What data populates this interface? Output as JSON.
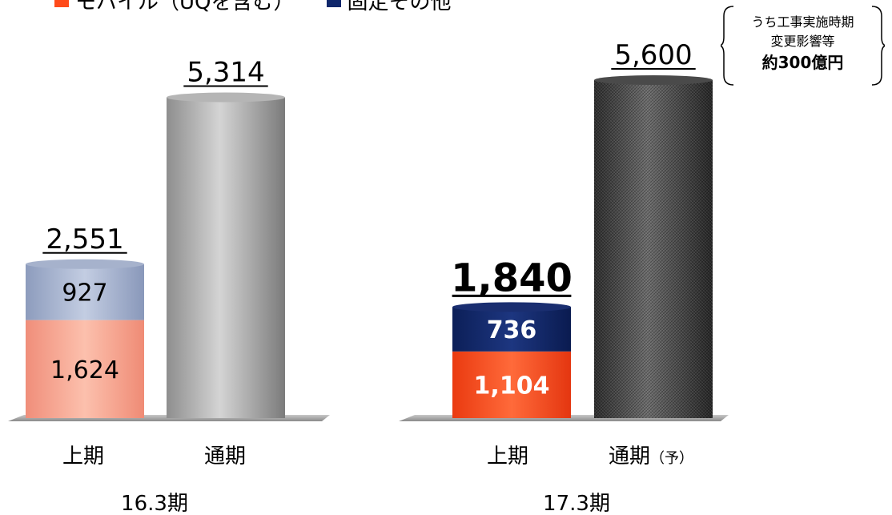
{
  "legend": [
    {
      "label": "モバイル（UQを含む）",
      "color": "#ff4b1a"
    },
    {
      "label": "固定その他",
      "color": "#10276b"
    }
  ],
  "note": {
    "line1": "うち工事実施時期",
    "line2": "変更影響等",
    "line3": "約300億円"
  },
  "chart_data": {
    "type": "bar",
    "groups": [
      {
        "period": "16.3期",
        "bars": [
          {
            "label": "上期",
            "total_label": "2,551",
            "total": 2551,
            "stacked": true,
            "segments": [
              {
                "series": "モバイル（UQを含む）",
                "value": 1624,
                "label": "1,624"
              },
              {
                "series": "固定その他",
                "value": 927,
                "label": "927"
              }
            ]
          },
          {
            "label": "通期",
            "total_label": "5,314",
            "total": 5314,
            "stacked": false
          }
        ]
      },
      {
        "period": "17.3期",
        "bars": [
          {
            "label": "上期",
            "total_label": "1,840",
            "total": 1840,
            "stacked": true,
            "segments": [
              {
                "series": "モバイル（UQを含む）",
                "value": 1104,
                "label": "1,104"
              },
              {
                "series": "固定その他",
                "value": 736,
                "label": "736"
              }
            ]
          },
          {
            "label": "通期",
            "suffix": "（予）",
            "total_label": "5,600",
            "total": 5600,
            "stacked": false
          }
        ]
      }
    ],
    "ylim": [
      0,
      5600
    ],
    "grid": false
  }
}
